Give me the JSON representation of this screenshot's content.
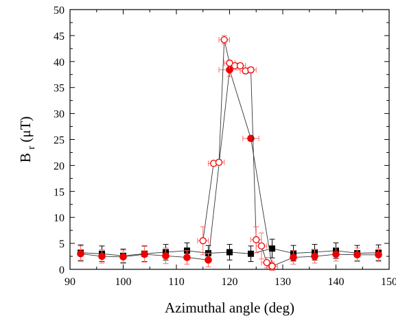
{
  "chart_data": {
    "type": "scatter",
    "title": "",
    "xlabel": "Azimuthal angle (deg)",
    "ylabel_main": "B",
    "ylabel_sub": "r",
    "ylabel_unit": " (μT)",
    "xlim": [
      90,
      150
    ],
    "ylim": [
      0,
      50
    ],
    "x_ticks": [
      "90",
      "100",
      "110",
      "120",
      "130",
      "140",
      "150"
    ],
    "y_ticks": [
      "0",
      "5",
      "10",
      "15",
      "20",
      "25",
      "30",
      "35",
      "40",
      "45",
      "50"
    ],
    "grid": false,
    "legend": "none",
    "series": [
      {
        "marker": "square-filled",
        "color": "#000000",
        "error_color": "#000000",
        "x": [
          92,
          96,
          100,
          104,
          108,
          112,
          116,
          120,
          124,
          128,
          132,
          136,
          140,
          144,
          148
        ],
        "y": [
          3.2,
          3.0,
          2.6,
          3.0,
          3.3,
          3.6,
          3.1,
          3.3,
          3.0,
          4.0,
          3.1,
          3.3,
          3.6,
          3.1,
          3.2
        ],
        "yerr": [
          1.5,
          1.5,
          1.3,
          1.5,
          1.5,
          1.5,
          1.5,
          1.5,
          1.5,
          1.8,
          1.5,
          1.5,
          1.5,
          1.5,
          1.5
        ],
        "xerr": [
          0,
          0,
          0,
          0,
          0,
          0,
          0,
          0,
          0,
          0,
          0,
          0,
          0,
          0,
          0
        ]
      },
      {
        "marker": "circle-filled",
        "color": "#ee0000",
        "error_color": "#ff6666",
        "x": [
          92,
          96,
          100,
          104,
          108,
          112,
          116,
          120,
          124,
          128,
          132,
          136,
          140,
          144,
          148
        ],
        "y": [
          3.0,
          2.5,
          2.4,
          2.9,
          2.6,
          2.3,
          1.8,
          38.4,
          25.2,
          0.6,
          2.3,
          2.5,
          2.9,
          2.8,
          2.8
        ],
        "yerr": [
          1.5,
          1.3,
          1.3,
          1.5,
          1.5,
          1.3,
          1.3,
          1.3,
          0.5,
          0.8,
          1.3,
          1.3,
          1.3,
          1.3,
          1.3
        ],
        "xerr": [
          0,
          0,
          0,
          0,
          0,
          0,
          0,
          2,
          1.5,
          0,
          0,
          0,
          0,
          0,
          0
        ]
      },
      {
        "marker": "circle-open",
        "color": "#ee0000",
        "error_color": "#ff6666",
        "x": [
          115,
          117,
          118,
          119,
          120,
          121,
          122,
          123,
          124,
          125,
          126,
          127,
          128
        ],
        "y": [
          5.5,
          20.4,
          20.6,
          44.2,
          39.7,
          39.2,
          39.2,
          38.2,
          38.4,
          5.7,
          4.5,
          1.3,
          0.6
        ],
        "yerr": [
          2.7,
          0.5,
          0.5,
          0.8,
          0.5,
          0.5,
          0.5,
          0.5,
          0.5,
          2.5,
          2.5,
          1.0,
          0.5
        ],
        "xerr": [
          1,
          1,
          1,
          1,
          1,
          1,
          1,
          1,
          1,
          1,
          1,
          1,
          1
        ]
      }
    ]
  }
}
